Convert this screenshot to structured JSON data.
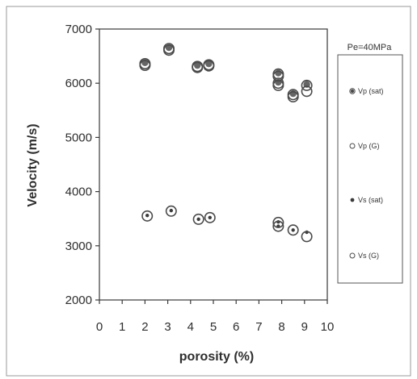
{
  "chart_data": {
    "type": "scatter",
    "title": "",
    "annotation": "Pe=40MPa",
    "xlabel": "porosity (%)",
    "ylabel": "Velocity  (m/s)",
    "xlim": [
      0,
      10
    ],
    "ylim": [
      2000,
      7000
    ],
    "x_ticks": [
      "0",
      "1",
      "2",
      "3",
      "4",
      "5",
      "6",
      "7",
      "8",
      "9",
      "10"
    ],
    "y_ticks": [
      "2000",
      "3000",
      "4000",
      "5000",
      "6000",
      "7000"
    ],
    "grid": false,
    "legend_position": "right",
    "series": [
      {
        "name": "Vp (sat)",
        "marker": "filled-dark-circle",
        "color": "#4a4a4a",
        "x": [
          2.0,
          3.05,
          4.3,
          4.8,
          7.85,
          7.85,
          8.5,
          9.1
        ],
        "y": [
          6360,
          6640,
          6310,
          6340,
          6170,
          6000,
          5790,
          5960
        ]
      },
      {
        "name": "Vp (G)",
        "marker": "open-circle",
        "color": "#4a4a4a",
        "x": [
          2.0,
          3.05,
          4.3,
          4.8,
          7.85,
          7.85,
          8.5,
          9.1
        ],
        "y": [
          6330,
          6610,
          6290,
          6320,
          6130,
          5960,
          5750,
          5850
        ]
      },
      {
        "name": "Vs (sat)",
        "marker": "small-filled-circle",
        "color": "#3a3a3a",
        "x": [
          2.1,
          3.15,
          4.35,
          4.85,
          7.85,
          7.85,
          8.5,
          9.1
        ],
        "y": [
          3560,
          3650,
          3490,
          3520,
          3440,
          3360,
          3290,
          3250
        ]
      },
      {
        "name": "Vs (G)",
        "marker": "open-circle",
        "color": "#4a4a4a",
        "x": [
          2.1,
          3.15,
          4.35,
          4.85,
          7.85,
          7.85,
          8.5,
          9.1
        ],
        "y": [
          3550,
          3640,
          3490,
          3520,
          3430,
          3360,
          3290,
          3170
        ]
      }
    ]
  }
}
